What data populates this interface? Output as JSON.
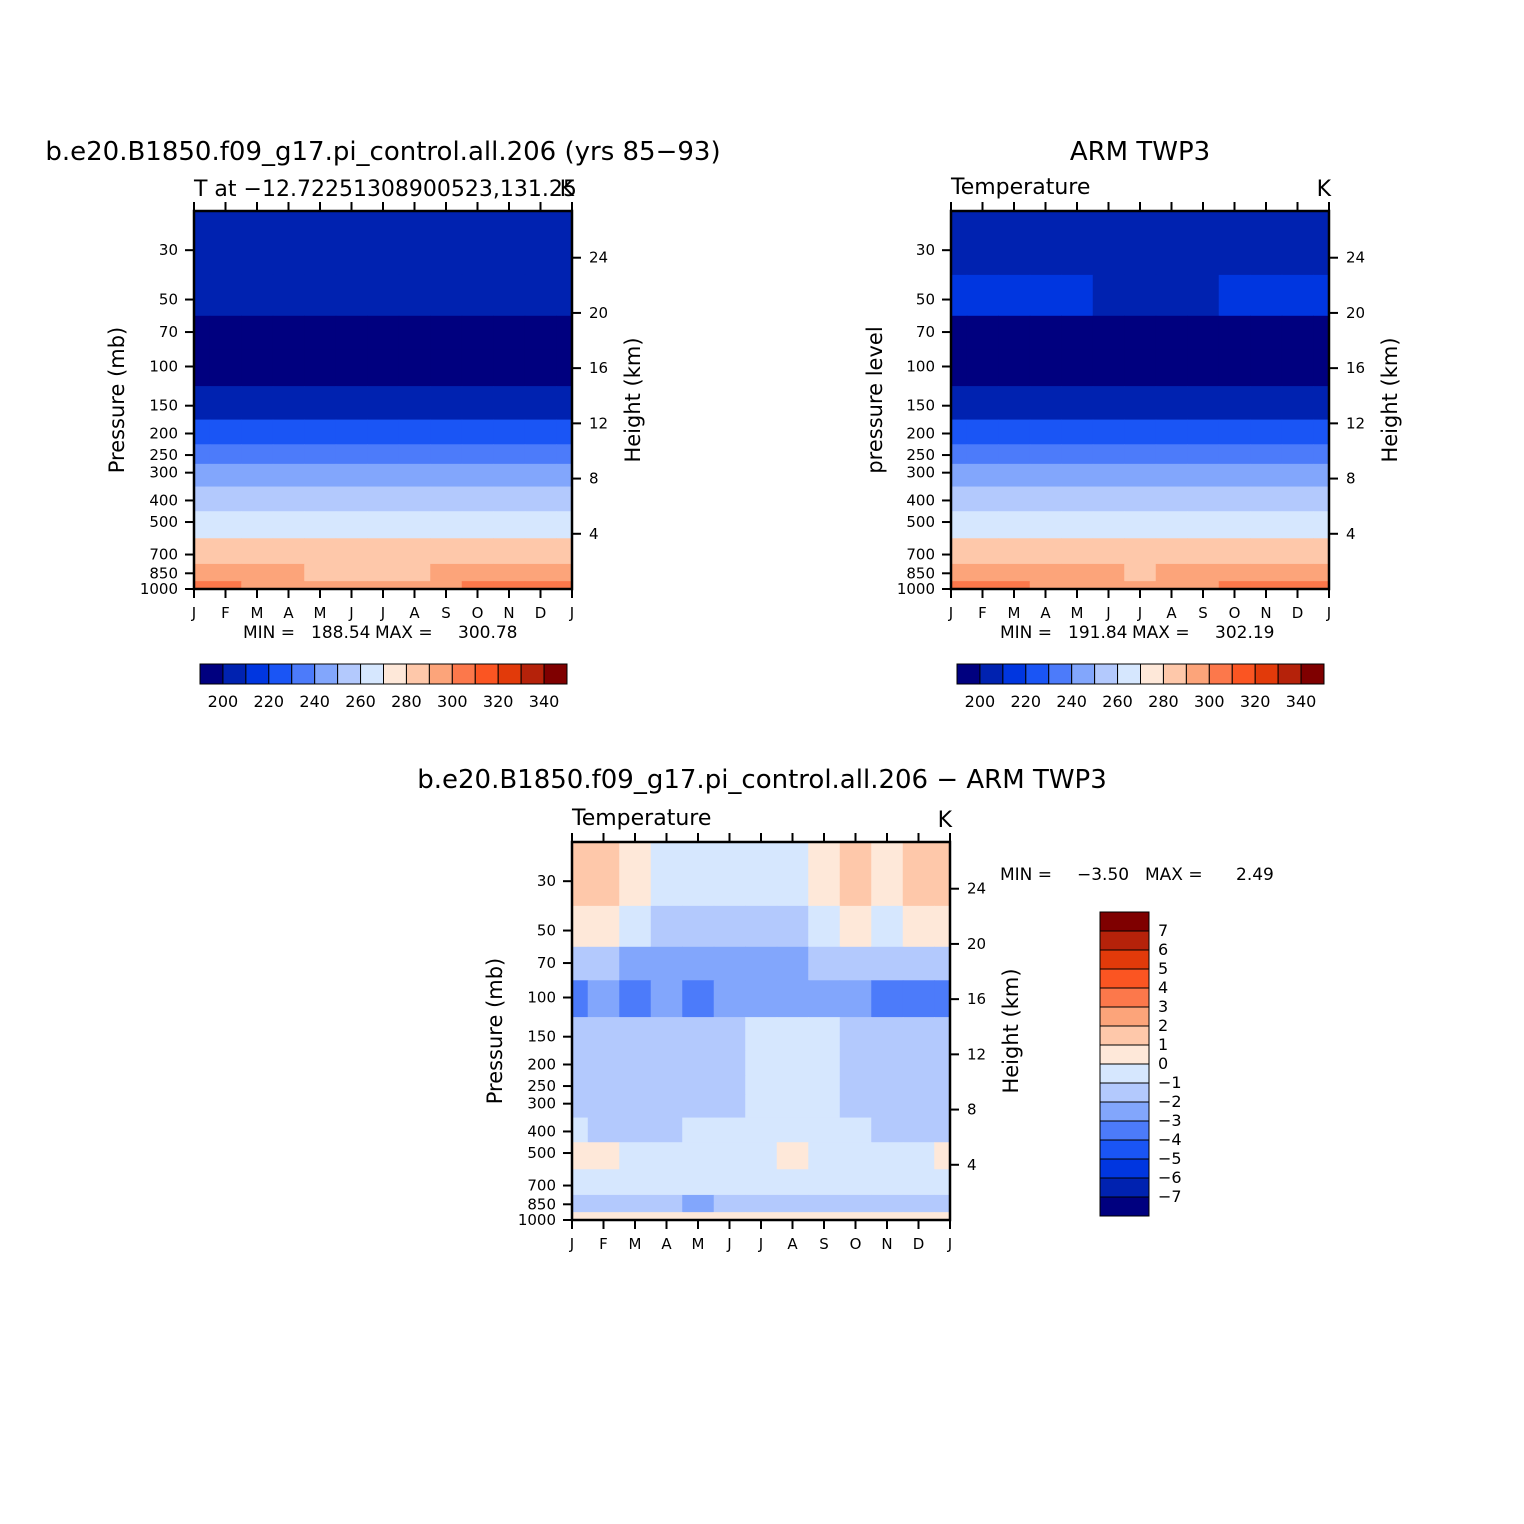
{
  "months": [
    "J",
    "F",
    "M",
    "A",
    "M",
    "J",
    "J",
    "A",
    "S",
    "O",
    "N",
    "D",
    "J"
  ],
  "pressure_ticks": [
    30,
    50,
    70,
    100,
    150,
    200,
    250,
    300,
    400,
    500,
    700,
    850,
    1000
  ],
  "height_ticks": [
    4,
    8,
    12,
    16,
    20,
    24
  ],
  "temp_levels": [
    200,
    210,
    220,
    230,
    240,
    250,
    260,
    270,
    280,
    290,
    300,
    310,
    320,
    330,
    340
  ],
  "temp_colorbar_labels": [
    200,
    220,
    240,
    260,
    280,
    300,
    320,
    340
  ],
  "temp_colors": [
    "#00007f",
    "#0022b0",
    "#0036e0",
    "#1a55f5",
    "#4c7bfa",
    "#82a6fc",
    "#b3c9fd",
    "#d6e7fe",
    "#fee8d9",
    "#fec8aa",
    "#fca47a",
    "#fc784b",
    "#fb5522",
    "#e23a0a",
    "#b5220a",
    "#7f0000"
  ],
  "diff_levels": [
    -7,
    -6,
    -5,
    -4,
    -3,
    -2,
    -1,
    0,
    1,
    2,
    3,
    4,
    5,
    6,
    7
  ],
  "diff_colors": [
    "#00007f",
    "#0022b0",
    "#0036e0",
    "#1a55f5",
    "#4c7bfa",
    "#82a6fc",
    "#b3c9fd",
    "#d6e7fe",
    "#fee8d9",
    "#fec8aa",
    "#fca47a",
    "#fc784b",
    "#fb5522",
    "#e23a0a",
    "#b5220a",
    "#7f0000"
  ],
  "panels": {
    "model": {
      "title": "b.e20.B1850.f09_g17.pi_control.all.206 (yrs 85−93)",
      "subtitle": "T at −12.72251308900523,131.25",
      "units": "K",
      "ylabel": "Pressure (mb)",
      "ylabel_right": "Height (km)",
      "min_label": "MIN =",
      "min_value": "188.54",
      "max_label": "MAX =",
      "max_value": "300.78"
    },
    "obs": {
      "title": "ARM TWP3",
      "subtitle": "Temperature",
      "units": "K",
      "ylabel": "pressure level",
      "ylabel_right": "Height (km)",
      "min_label": "MIN =",
      "min_value": "191.84",
      "max_label": "MAX =",
      "max_value": "302.19"
    },
    "diff": {
      "title": "b.e20.B1850.f09_g17.pi_control.all.206 − ARM TWP3",
      "subtitle": "Temperature",
      "units": "K",
      "ylabel": "Pressure (mb)",
      "ylabel_right": "Height (km)",
      "min_label": "MIN =",
      "min_value": "−3.50",
      "max_label": "MAX =",
      "max_value": "2.49"
    }
  },
  "chart_data": [
    {
      "type": "heatmap",
      "title": "b.e20.B1850.f09_g17.pi_control.all.206 (yrs 85−93)",
      "subtitle": "T at −12.72251308900523,131.25",
      "units": "K",
      "x": [
        "J",
        "F",
        "M",
        "A",
        "M",
        "J",
        "J",
        "A",
        "S",
        "O",
        "N",
        "D",
        "J"
      ],
      "y": [
        30,
        50,
        70,
        100,
        150,
        200,
        250,
        300,
        400,
        500,
        700,
        850,
        1000
      ],
      "yscale": "log",
      "ylabel": "Pressure (mb)",
      "y2label": "Height (km)",
      "min": 188.54,
      "max": 300.78,
      "z": [
        [
          205,
          205,
          205,
          205,
          205,
          205,
          205,
          205,
          205,
          205,
          205,
          205,
          205
        ],
        [
          207,
          207,
          206,
          206,
          205,
          205,
          205,
          205,
          205,
          205,
          206,
          207,
          207
        ],
        [
          193,
          193,
          193,
          192,
          192,
          191,
          191,
          191,
          191,
          191,
          192,
          193,
          193
        ],
        [
          193,
          193,
          193,
          193,
          193,
          193,
          193,
          193,
          193,
          193,
          193,
          193,
          193
        ],
        [
          209,
          209,
          209,
          209,
          208,
          208,
          208,
          208,
          208,
          208,
          209,
          209,
          209
        ],
        [
          224,
          224,
          223,
          223,
          223,
          223,
          223,
          223,
          223,
          223,
          223,
          224,
          224
        ],
        [
          234,
          234,
          234,
          233,
          233,
          233,
          233,
          233,
          233,
          233,
          233,
          234,
          234
        ],
        [
          244,
          244,
          243,
          243,
          243,
          243,
          243,
          243,
          243,
          243,
          243,
          244,
          244
        ],
        [
          259,
          259,
          258,
          258,
          258,
          258,
          258,
          258,
          258,
          258,
          258,
          258,
          259
        ],
        [
          268,
          268,
          268,
          268,
          268,
          268,
          268,
          268,
          268,
          268,
          268,
          268,
          268
        ],
        [
          283,
          283,
          283,
          283,
          283,
          283,
          283,
          283,
          283,
          283,
          283,
          283,
          283
        ],
        [
          291,
          291,
          291,
          290,
          289,
          288,
          288,
          289,
          290,
          291,
          291,
          291,
          291
        ],
        [
          300,
          300,
          299,
          298,
          297,
          296,
          296,
          297,
          298,
          300,
          300,
          300,
          300
        ]
      ]
    },
    {
      "type": "heatmap",
      "title": "ARM TWP3",
      "subtitle": "Temperature",
      "units": "K",
      "x": [
        "J",
        "F",
        "M",
        "A",
        "M",
        "J",
        "J",
        "A",
        "S",
        "O",
        "N",
        "D",
        "J"
      ],
      "y": [
        30,
        50,
        70,
        100,
        150,
        200,
        250,
        300,
        400,
        500,
        700,
        850,
        1000
      ],
      "yscale": "log",
      "ylabel": "pressure level",
      "y2label": "Height (km)",
      "min": 191.84,
      "max": 302.19,
      "z": [
        [
          205,
          205,
          204,
          204,
          205,
          205,
          205,
          205,
          205,
          205,
          205,
          205,
          205
        ],
        [
          213,
          212,
          211,
          210,
          210,
          209,
          209,
          209,
          209,
          210,
          211,
          212,
          213
        ],
        [
          197,
          196,
          195,
          195,
          194,
          193,
          193,
          193,
          194,
          195,
          196,
          197,
          197
        ],
        [
          195,
          195,
          195,
          195,
          195,
          195,
          195,
          195,
          195,
          195,
          195,
          195,
          195
        ],
        [
          209,
          209,
          209,
          209,
          209,
          209,
          209,
          209,
          209,
          209,
          209,
          209,
          209
        ],
        [
          225,
          225,
          225,
          225,
          225,
          225,
          225,
          225,
          225,
          225,
          225,
          225,
          225
        ],
        [
          236,
          236,
          236,
          236,
          236,
          235,
          235,
          235,
          235,
          236,
          236,
          236,
          236
        ],
        [
          246,
          246,
          246,
          245,
          245,
          245,
          245,
          245,
          245,
          245,
          245,
          246,
          246
        ],
        [
          259,
          259,
          259,
          259,
          258,
          258,
          258,
          258,
          258,
          258,
          259,
          259,
          259
        ],
        [
          268,
          268,
          268,
          268,
          268,
          268,
          268,
          268,
          268,
          268,
          268,
          268,
          268
        ],
        [
          283,
          283,
          283,
          283,
          283,
          283,
          283,
          283,
          283,
          283,
          283,
          283,
          283
        ],
        [
          293,
          293,
          292,
          291,
          290,
          290,
          289,
          290,
          291,
          292,
          293,
          293,
          293
        ],
        [
          302,
          301,
          300,
          299,
          298,
          297,
          297,
          298,
          299,
          301,
          302,
          302,
          302
        ]
      ]
    },
    {
      "type": "heatmap",
      "title": "b.e20.B1850.f09_g17.pi_control.all.206 − ARM TWP3",
      "subtitle": "Temperature",
      "units": "K",
      "x": [
        "J",
        "F",
        "M",
        "A",
        "M",
        "J",
        "J",
        "A",
        "S",
        "O",
        "N",
        "D",
        "J"
      ],
      "y": [
        30,
        50,
        70,
        100,
        150,
        200,
        250,
        300,
        400,
        500,
        700,
        850,
        1000
      ],
      "yscale": "log",
      "ylabel": "Pressure (mb)",
      "y2label": "Height (km)",
      "min": -3.5,
      "max": 2.49,
      "z": [
        [
          1.5,
          1.5,
          0.5,
          -0.5,
          -0.5,
          -0.5,
          -0.5,
          -0.2,
          0.5,
          1.5,
          0.5,
          1.5,
          1.5
        ],
        [
          0.5,
          0.3,
          -0.8,
          -1.5,
          -1.5,
          -1.5,
          -1.5,
          -1.2,
          -0.5,
          0.3,
          -0.5,
          0.3,
          0.5
        ],
        [
          -1.5,
          -1.8,
          -2.2,
          -2.5,
          -2.5,
          -2.5,
          -2.5,
          -2.3,
          -2.0,
          -1.5,
          -2.0,
          -1.8,
          -1.5
        ],
        [
          -3.2,
          -2.7,
          -3.2,
          -2.7,
          -3.3,
          -2.5,
          -2.5,
          -2.5,
          -2.5,
          -2.7,
          -3.2,
          -3.4,
          -3.2
        ],
        [
          -1.8,
          -1.2,
          -1.5,
          -1.8,
          -1.8,
          -1.5,
          -0.5,
          -0.5,
          -0.8,
          -1.8,
          -1.8,
          -1.8,
          -1.8
        ],
        [
          -1.8,
          -1.5,
          -1.5,
          -1.8,
          -1.5,
          -1.2,
          -0.5,
          -0.5,
          -0.5,
          -1.2,
          -1.8,
          -1.8,
          -1.8
        ],
        [
          -1.8,
          -1.8,
          -1.8,
          -1.8,
          -1.5,
          -1.2,
          -0.5,
          -0.5,
          -0.5,
          -1.2,
          -1.8,
          -1.8,
          -1.8
        ],
        [
          -1.8,
          -1.8,
          -1.8,
          -1.8,
          -1.5,
          -1.2,
          -0.5,
          -0.5,
          -0.5,
          -1.2,
          -1.8,
          -1.8,
          -1.8
        ],
        [
          -0.8,
          -1.2,
          -1.5,
          -1.2,
          -0.8,
          -0.5,
          -0.5,
          -0.5,
          -0.5,
          -0.8,
          -1.2,
          -1.5,
          -1.5
        ],
        [
          0.5,
          0.5,
          -0.5,
          -0.5,
          -0.5,
          -0.5,
          -0.5,
          0.5,
          -0.5,
          -0.5,
          -0.5,
          -0.5,
          0.5
        ],
        [
          -0.5,
          -0.5,
          -0.5,
          -0.5,
          -0.5,
          -0.5,
          -0.5,
          -0.5,
          -0.5,
          -0.5,
          -0.5,
          -0.5,
          -0.5
        ],
        [
          -1.5,
          -1.5,
          -1.5,
          -1.5,
          -2.5,
          -1.5,
          -1.5,
          -1.5,
          -1.5,
          -1.5,
          -1.5,
          -1.5,
          -1.5
        ],
        [
          0.5,
          0.5,
          0.5,
          0.5,
          0.5,
          0.5,
          0.5,
          0.5,
          0.5,
          0.5,
          0.5,
          0.5,
          0.5
        ]
      ]
    }
  ]
}
